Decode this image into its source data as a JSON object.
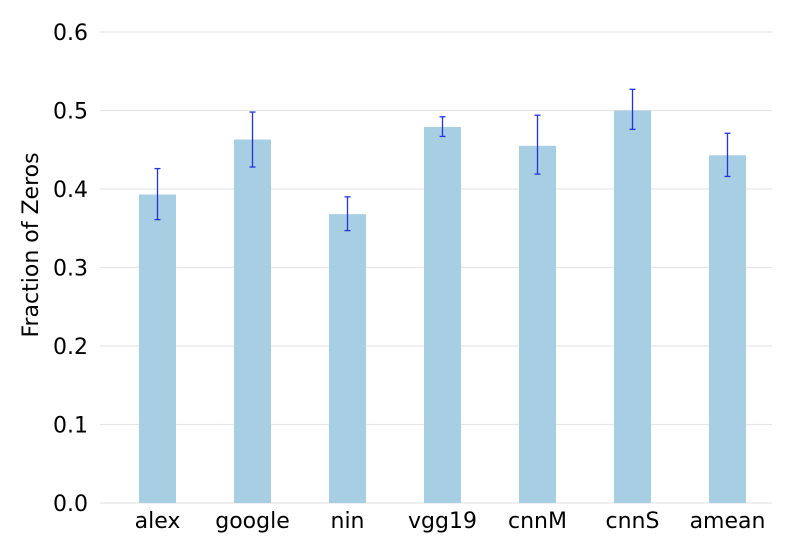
{
  "chart_data": {
    "type": "bar",
    "title": "",
    "xlabel": "",
    "ylabel": "Fraction of Zeros",
    "categories": [
      "alex",
      "google",
      "nin",
      "vgg19",
      "cnnM",
      "cnnS",
      "amean"
    ],
    "values": [
      0.393,
      0.463,
      0.368,
      0.479,
      0.455,
      0.5,
      0.443
    ],
    "error_low": [
      0.361,
      0.428,
      0.347,
      0.467,
      0.419,
      0.476,
      0.416
    ],
    "error_high": [
      0.426,
      0.498,
      0.39,
      0.492,
      0.494,
      0.527,
      0.471
    ],
    "ylim": [
      0,
      0.6
    ],
    "yticks": [
      "0.0",
      "0.1",
      "0.2",
      "0.3",
      "0.4",
      "0.5",
      "0.6"
    ],
    "grid": true,
    "legend": "none",
    "colors": {
      "bar": "#a8cee3",
      "error_bar": "#2233dd",
      "grid": "#e6e6e6"
    }
  }
}
